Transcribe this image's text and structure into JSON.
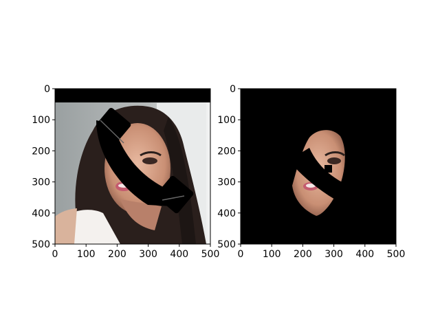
{
  "chart_data": [
    {
      "type": "image",
      "title": "",
      "content": "photo of a smiling woman with long dark hair, partially covered by a black telephone-handset shaped mask; black band across the top",
      "xlim": [
        0,
        500
      ],
      "ylim": [
        500,
        0
      ],
      "x_ticks": [
        0,
        100,
        200,
        300,
        400,
        500
      ],
      "y_ticks": [
        0,
        100,
        200,
        300,
        400,
        500
      ],
      "x_tick_labels": [
        "0",
        "100",
        "200",
        "300",
        "400",
        "500"
      ],
      "y_tick_labels": [
        "0",
        "100",
        "200",
        "300",
        "400",
        "500"
      ]
    },
    {
      "type": "image",
      "title": "",
      "content": "face-only segmentation of the same photo on a black background, with the telephone-handset mask and a small black square near the eye",
      "xlim": [
        0,
        500
      ],
      "ylim": [
        500,
        0
      ],
      "x_ticks": [
        0,
        100,
        200,
        300,
        400,
        500
      ],
      "y_ticks": [
        0,
        100,
        200,
        300,
        400,
        500
      ],
      "x_tick_labels": [
        "0",
        "100",
        "200",
        "300",
        "400",
        "500"
      ],
      "y_tick_labels": [
        "0",
        "100",
        "200",
        "300",
        "400",
        "500"
      ]
    }
  ]
}
